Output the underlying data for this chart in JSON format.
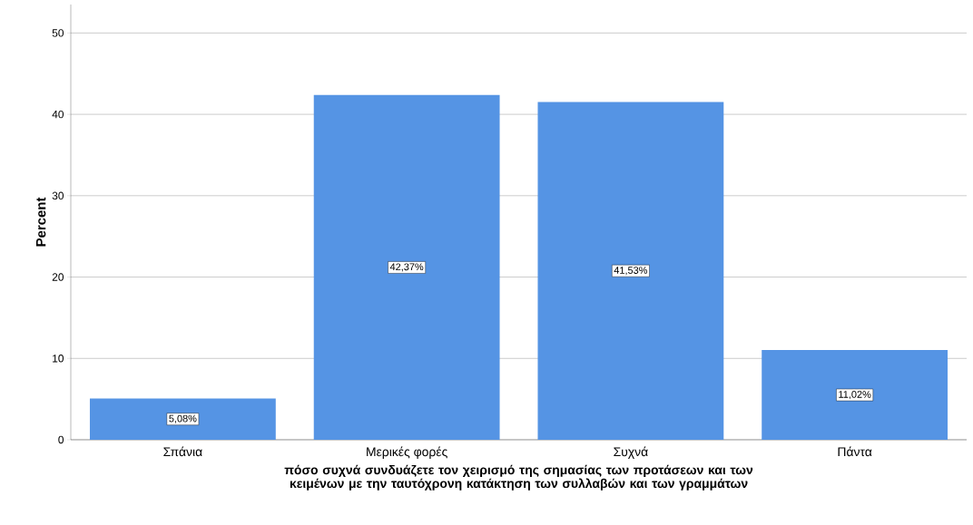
{
  "chart_data": {
    "type": "bar",
    "xlabel": "πόσο συχνά συνδυάζετε τον χειρισμό της σημασίας των προτάσεων και των κειμένων με την ταυτόχρονη κατάκτηση των συλλαβών και των γραμμάτων",
    "ylabel": "Percent",
    "categories": [
      "Σπάνια",
      "Μερικές φορές",
      "Συχνά",
      "Πάντα"
    ],
    "values": [
      5.08,
      42.37,
      41.53,
      11.02
    ],
    "value_labels": [
      "5,08%",
      "42,37%",
      "41,53%",
      "11,02%"
    ],
    "color": "#5594e4",
    "ylim": [
      0,
      53.5
    ],
    "yticks": [
      0,
      10,
      20,
      30,
      40,
      50
    ],
    "grid": "y"
  }
}
